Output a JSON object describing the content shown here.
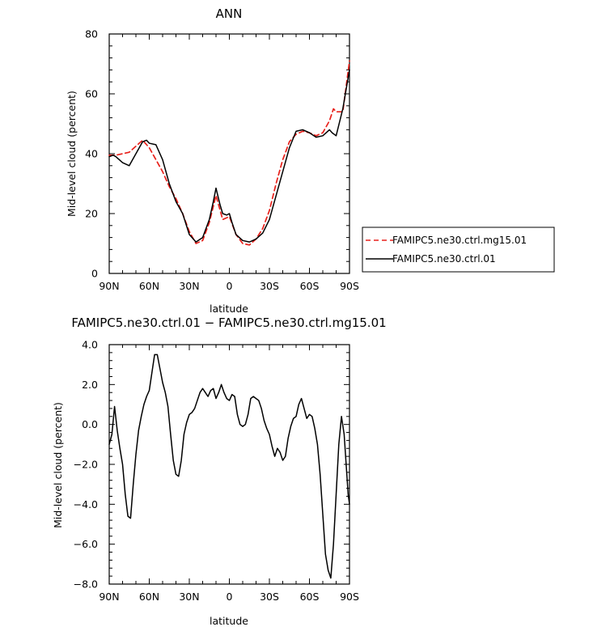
{
  "chart_data": [
    {
      "type": "line",
      "title": "ANN",
      "xlabel": "latitude",
      "ylabel": "Mid-level cloud (percent)",
      "xlim": [
        90,
        -90
      ],
      "ylim": [
        0,
        80
      ],
      "xticks": [
        90,
        60,
        30,
        0,
        -30,
        -60,
        -90
      ],
      "xticklabels": [
        "90N",
        "60N",
        "30N",
        "0",
        "30S",
        "60S",
        "90S"
      ],
      "yticks": [
        0,
        20,
        40,
        60,
        80
      ],
      "yticklabels": [
        "0",
        "20",
        "40",
        "60",
        "80"
      ],
      "legend_position": "right",
      "series": [
        {
          "name": "FAMIPC5.ne30.ctrl.mg15.01",
          "color": "#e8211b",
          "dash": "dashed",
          "x": [
            90,
            85,
            80,
            75,
            70,
            65,
            60,
            55,
            50,
            45,
            40,
            35,
            30,
            25,
            20,
            15,
            10,
            5,
            0,
            -5,
            -10,
            -15,
            -20,
            -25,
            -30,
            -35,
            -40,
            -45,
            -50,
            -55,
            -60,
            -65,
            -70,
            -75,
            -78,
            -80,
            -85,
            -90
          ],
          "y": [
            39.5,
            39.5,
            40,
            40.5,
            42.5,
            44.5,
            42,
            38,
            34,
            29,
            25,
            20,
            14,
            10,
            11,
            17,
            26,
            18,
            19,
            13,
            10,
            9.5,
            11.5,
            15,
            21,
            30,
            38,
            44,
            46.5,
            47.5,
            47,
            46,
            47,
            51,
            55,
            54,
            54,
            71
          ]
        },
        {
          "name": "FAMIPC5.ne30.ctrl.01",
          "color": "#000000",
          "dash": "solid",
          "x": [
            90,
            87,
            85,
            80,
            75,
            70,
            65,
            62,
            60,
            55,
            50,
            45,
            40,
            35,
            30,
            25,
            20,
            15,
            12,
            10,
            7,
            5,
            2,
            0,
            -2,
            -5,
            -10,
            -15,
            -20,
            -25,
            -30,
            -35,
            -40,
            -45,
            -50,
            -55,
            -60,
            -65,
            -70,
            -75,
            -77,
            -80,
            -85,
            -90
          ],
          "y": [
            39,
            39.5,
            39,
            37,
            36,
            40,
            44,
            44.5,
            43.5,
            43,
            38,
            30,
            24,
            20,
            13,
            10.5,
            12,
            18,
            24,
            28.5,
            23,
            20,
            19.5,
            20,
            17,
            13,
            11,
            10.5,
            11.5,
            13.5,
            18,
            26,
            34,
            42,
            47.5,
            48,
            47,
            45.5,
            46,
            48,
            47,
            46,
            55,
            68
          ]
        }
      ]
    },
    {
      "type": "line",
      "title": "FAMIPC5.ne30.ctrl.01 − FAMIPC5.ne30.ctrl.mg15.01",
      "xlabel": "latitude",
      "ylabel": "Mid-level cloud (percent)",
      "xlim": [
        90,
        -90
      ],
      "ylim": [
        -8,
        4
      ],
      "xticks": [
        90,
        60,
        30,
        0,
        -30,
        -60,
        -90
      ],
      "xticklabels": [
        "90N",
        "60N",
        "30N",
        "0",
        "30S",
        "60S",
        "90S"
      ],
      "yticks": [
        4,
        2,
        0,
        -2,
        -4,
        -6,
        -8
      ],
      "yticklabels": [
        "4.0",
        "2.0",
        "0.0",
        "−2.0",
        "−4.0",
        "−6.0",
        "−8.0"
      ],
      "series": [
        {
          "color": "#000000",
          "dash": "solid",
          "x": [
            90,
            88,
            86,
            84,
            82,
            80,
            78,
            76,
            74,
            72,
            70,
            68,
            66,
            64,
            62,
            60,
            58,
            56,
            54,
            52,
            50,
            48,
            46,
            44,
            42,
            40,
            38,
            36,
            34,
            32,
            30,
            28,
            26,
            24,
            22,
            20,
            18,
            16,
            14,
            12,
            10,
            8,
            6,
            4,
            2,
            0,
            -2,
            -4,
            -6,
            -8,
            -10,
            -12,
            -14,
            -16,
            -18,
            -20,
            -22,
            -24,
            -26,
            -28,
            -30,
            -32,
            -34,
            -36,
            -38,
            -40,
            -42,
            -44,
            -46,
            -48,
            -50,
            -52,
            -54,
            -56,
            -58,
            -60,
            -62,
            -64,
            -66,
            -68,
            -70,
            -72,
            -74,
            -76,
            -78,
            -80,
            -82,
            -84,
            -86,
            -88,
            -89,
            -90
          ],
          "y": [
            -1.0,
            -0.5,
            0.9,
            -0.3,
            -1.2,
            -2.0,
            -3.5,
            -4.6,
            -4.7,
            -3.0,
            -1.5,
            -0.3,
            0.4,
            1.0,
            1.4,
            1.7,
            2.6,
            3.5,
            3.5,
            2.8,
            2.1,
            1.6,
            0.9,
            -0.5,
            -1.8,
            -2.5,
            -2.6,
            -1.8,
            -0.5,
            0.1,
            0.5,
            0.6,
            0.8,
            1.2,
            1.6,
            1.8,
            1.6,
            1.4,
            1.7,
            1.8,
            1.3,
            1.6,
            2.0,
            1.6,
            1.3,
            1.2,
            1.5,
            1.4,
            0.5,
            0.0,
            -0.1,
            0.0,
            0.5,
            1.3,
            1.4,
            1.3,
            1.2,
            0.8,
            0.2,
            -0.2,
            -0.5,
            -1.1,
            -1.6,
            -1.2,
            -1.4,
            -1.8,
            -1.6,
            -0.7,
            -0.1,
            0.3,
            0.4,
            1.0,
            1.3,
            0.8,
            0.3,
            0.5,
            0.4,
            -0.2,
            -1.0,
            -2.5,
            -4.5,
            -6.5,
            -7.3,
            -7.7,
            -6.0,
            -3.5,
            -1.0,
            0.4,
            -0.5,
            -2.5,
            -3.5,
            -4.0
          ]
        }
      ]
    }
  ]
}
